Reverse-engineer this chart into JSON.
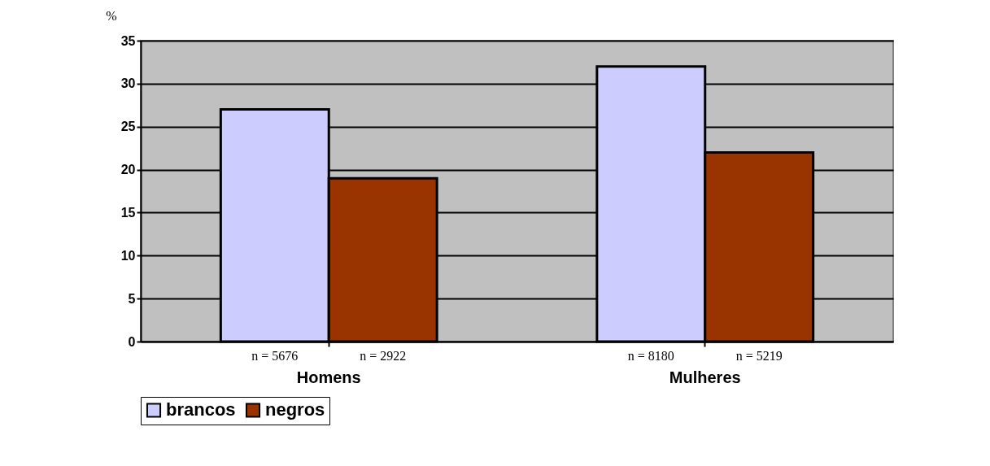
{
  "chart_data": {
    "type": "bar",
    "ylabel": "%",
    "categories": [
      "Homens",
      "Mulheres"
    ],
    "series": [
      {
        "name": "brancos",
        "color": "#ccccff",
        "values": [
          27,
          32
        ]
      },
      {
        "name": "negros",
        "color": "#993300",
        "values": [
          19,
          22
        ]
      }
    ],
    "ylim": [
      0,
      35
    ],
    "yticks": [
      0,
      5,
      10,
      15,
      20,
      25,
      30,
      35
    ],
    "grid": "y",
    "legend": "bottom",
    "annotations": [
      "n = 5676",
      "n = 2922",
      "n = 8180",
      "n = 5219"
    ]
  }
}
